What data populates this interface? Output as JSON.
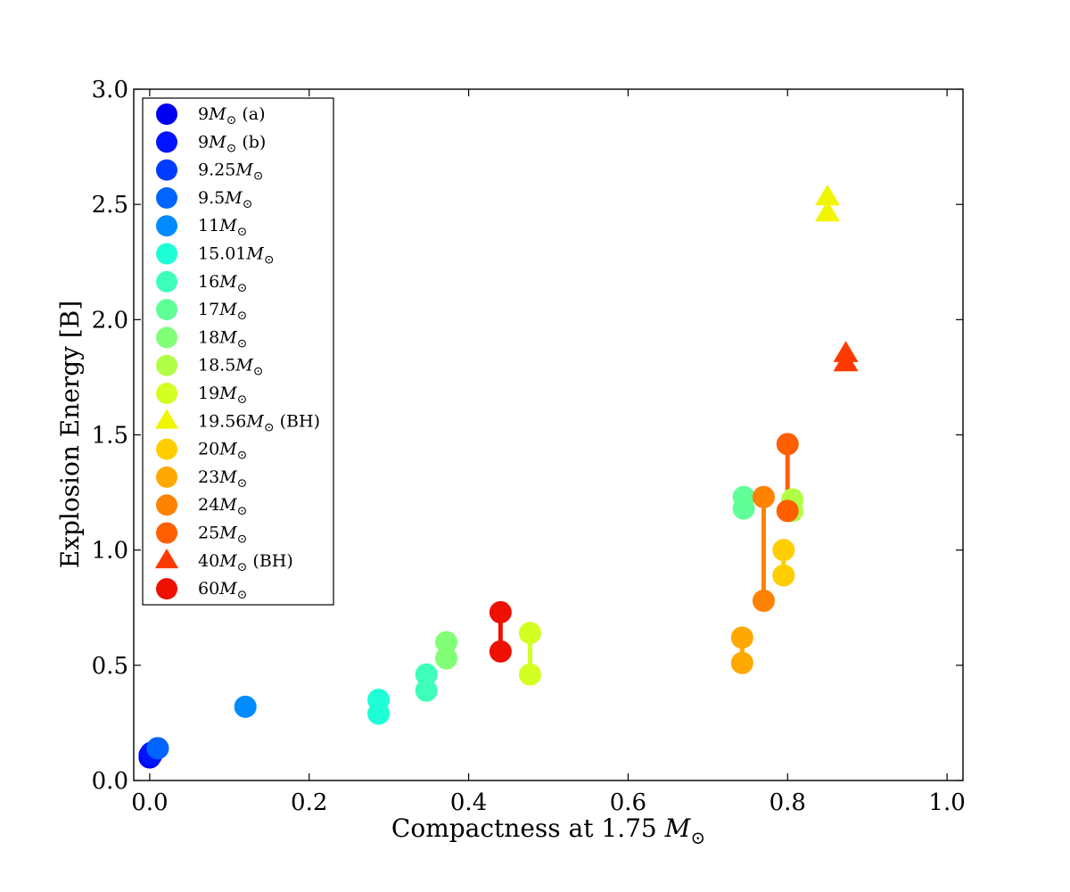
{
  "chart_data": {
    "type": "scatter",
    "title": "",
    "xlabel": "Compactness at 1.75",
    "xlabel_symbol": "M",
    "xlabel_subscript": "⊙",
    "ylabel": "Explosion Energy [B]",
    "xlim": [
      -0.02,
      1.02
    ],
    "ylim": [
      0.0,
      3.0
    ],
    "xticks": [
      "0.0",
      "0.2",
      "0.4",
      "0.6",
      "0.8",
      "1.0"
    ],
    "yticks": [
      "0.0",
      "0.5",
      "1.0",
      "1.5",
      "2.0",
      "2.5",
      "3.0"
    ],
    "legend_position": "top-left",
    "series": [
      {
        "name": "9",
        "suffix": " (a)",
        "marker": "circle",
        "color": "#0000f1",
        "points": [
          [
            0.0,
            0.1
          ],
          [
            0.0,
            0.11
          ]
        ],
        "connected": true
      },
      {
        "name": "9",
        "suffix": " (b)",
        "marker": "circle",
        "color": "#0014ff",
        "points": [
          [
            0.002,
            0.12
          ],
          [
            0.002,
            0.11
          ]
        ],
        "connected": true
      },
      {
        "name": "9.25",
        "suffix": "",
        "marker": "circle",
        "color": "#003cff",
        "points": [
          [
            0.01,
            0.14
          ]
        ],
        "connected": false
      },
      {
        "name": "9.5",
        "suffix": "",
        "marker": "circle",
        "color": "#0064ff",
        "points": [
          [
            0.01,
            0.14
          ]
        ],
        "connected": false
      },
      {
        "name": "11",
        "suffix": "",
        "marker": "circle",
        "color": "#008cff",
        "points": [
          [
            0.12,
            0.32
          ]
        ],
        "connected": false
      },
      {
        "name": "15.01",
        "suffix": "",
        "marker": "circle",
        "color": "#1effd8",
        "points": [
          [
            0.287,
            0.35
          ],
          [
            0.287,
            0.29
          ]
        ],
        "connected": true
      },
      {
        "name": "16",
        "suffix": "",
        "marker": "circle",
        "color": "#3effb9",
        "points": [
          [
            0.347,
            0.46
          ],
          [
            0.347,
            0.39
          ]
        ],
        "connected": true
      },
      {
        "name": "17",
        "suffix": "",
        "marker": "circle",
        "color": "#60ff97",
        "points": [
          [
            0.745,
            1.23
          ],
          [
            0.745,
            1.18
          ]
        ],
        "connected": true
      },
      {
        "name": "18",
        "suffix": "",
        "marker": "circle",
        "color": "#80ff77",
        "points": [
          [
            0.372,
            0.6
          ],
          [
            0.372,
            0.53
          ]
        ],
        "connected": true
      },
      {
        "name": "18.5",
        "suffix": "",
        "marker": "circle",
        "color": "#b0ff46",
        "points": [
          [
            0.806,
            1.22
          ],
          [
            0.806,
            1.17
          ]
        ],
        "connected": true
      },
      {
        "name": "19",
        "suffix": "",
        "marker": "circle",
        "color": "#d4ff23",
        "points": [
          [
            0.477,
            0.64
          ],
          [
            0.477,
            0.46
          ]
        ],
        "connected": true
      },
      {
        "name": "19.56",
        "suffix": " (BH)",
        "marker": "triangle",
        "color": "#f1f500",
        "points": [
          [
            0.85,
            2.53
          ],
          [
            0.85,
            2.46
          ]
        ],
        "connected": true
      },
      {
        "name": "20",
        "suffix": "",
        "marker": "circle",
        "color": "#ffce00",
        "points": [
          [
            0.795,
            1.0
          ],
          [
            0.795,
            0.89
          ]
        ],
        "connected": true
      },
      {
        "name": "23",
        "suffix": "",
        "marker": "circle",
        "color": "#ffa800",
        "points": [
          [
            0.743,
            0.62
          ],
          [
            0.743,
            0.51
          ]
        ],
        "connected": true
      },
      {
        "name": "24",
        "suffix": "",
        "marker": "circle",
        "color": "#ff8200",
        "points": [
          [
            0.77,
            1.23
          ],
          [
            0.77,
            0.78
          ]
        ],
        "connected": true
      },
      {
        "name": "25",
        "suffix": "",
        "marker": "circle",
        "color": "#ff5f00",
        "points": [
          [
            0.8,
            1.46
          ],
          [
            0.8,
            1.17
          ]
        ],
        "connected": true
      },
      {
        "name": "40",
        "suffix": " (BH)",
        "marker": "triangle",
        "color": "#ff3a00",
        "points": [
          [
            0.873,
            1.85
          ],
          [
            0.873,
            1.81
          ]
        ],
        "connected": true
      },
      {
        "name": "60",
        "suffix": "",
        "marker": "circle",
        "color": "#ee1000",
        "points": [
          [
            0.44,
            0.73
          ],
          [
            0.44,
            0.56
          ]
        ],
        "connected": true
      }
    ]
  }
}
